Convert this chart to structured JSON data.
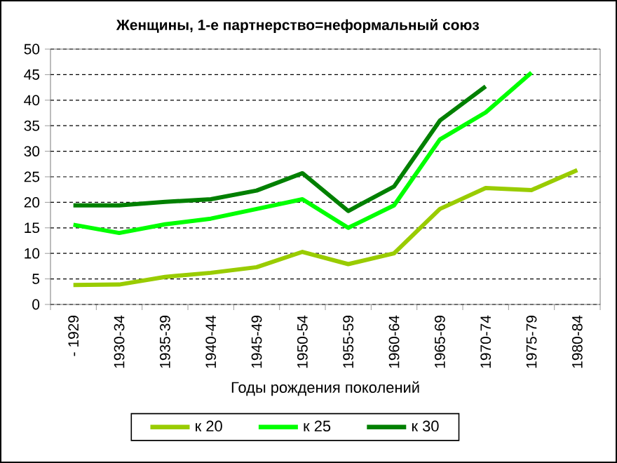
{
  "chart_data": {
    "type": "line",
    "title": "Женщины, 1-е партнерство=неформальный союз",
    "xlabel": "Годы рождения поколений",
    "categories": [
      "- 1929",
      "1930-34",
      "1935-39",
      "1940-44",
      "1945-49",
      "1950-54",
      "1955-59",
      "1960-64",
      "1965-69",
      "1970-74",
      "1975-79",
      "1980-84"
    ],
    "series": [
      {
        "name": "к 20",
        "color": "#99cc00",
        "values": [
          3.8,
          3.9,
          5.4,
          6.2,
          7.3,
          10.3,
          7.9,
          10.0,
          18.7,
          22.8,
          22.4,
          26.3
        ]
      },
      {
        "name": "к 25",
        "color": "#00ff00",
        "values": [
          15.6,
          14.0,
          15.7,
          16.8,
          18.7,
          20.6,
          15.0,
          19.4,
          32.3,
          37.6,
          45.4,
          null
        ]
      },
      {
        "name": "к 30",
        "color": "#008000",
        "values": [
          19.4,
          19.4,
          20.1,
          20.6,
          22.3,
          25.7,
          18.3,
          23.1,
          36.0,
          42.7,
          null,
          null
        ]
      }
    ],
    "ylim": [
      0,
      50
    ],
    "yticks": [
      0,
      5,
      10,
      15,
      20,
      25,
      30,
      35,
      40,
      45,
      50
    ],
    "grid": "y",
    "legend": "bottom",
    "marker": "none",
    "line_style": "solid"
  }
}
